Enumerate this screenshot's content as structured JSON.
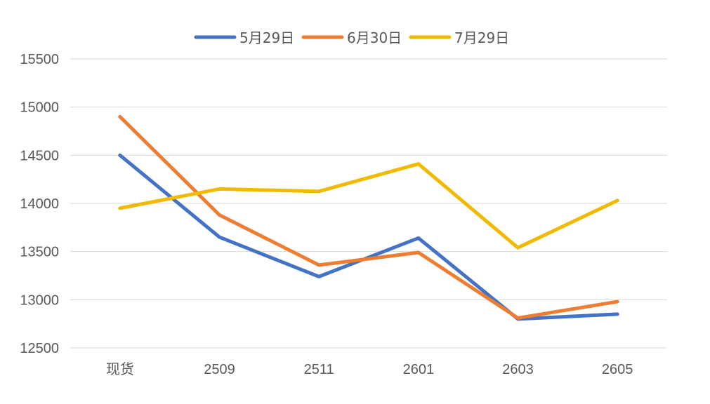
{
  "chart_data": {
    "type": "line",
    "categories": [
      "现货",
      "2509",
      "2511",
      "2601",
      "2603",
      "2605"
    ],
    "series": [
      {
        "name": "5月29日",
        "color": "#4472C4",
        "values": [
          14500,
          13650,
          13240,
          13640,
          12800,
          12850
        ]
      },
      {
        "name": "6月30日",
        "color": "#ED7D31",
        "values": [
          14900,
          13880,
          13360,
          13490,
          12810,
          12980
        ]
      },
      {
        "name": "7月29日",
        "color": "#F0BA00",
        "values": [
          13950,
          14150,
          14125,
          14410,
          13540,
          14030
        ]
      }
    ],
    "ylim": [
      12500,
      15500
    ],
    "yticks": [
      12500,
      13000,
      13500,
      14000,
      14500,
      15000,
      15500
    ],
    "legend": "top-center",
    "grid": true
  }
}
